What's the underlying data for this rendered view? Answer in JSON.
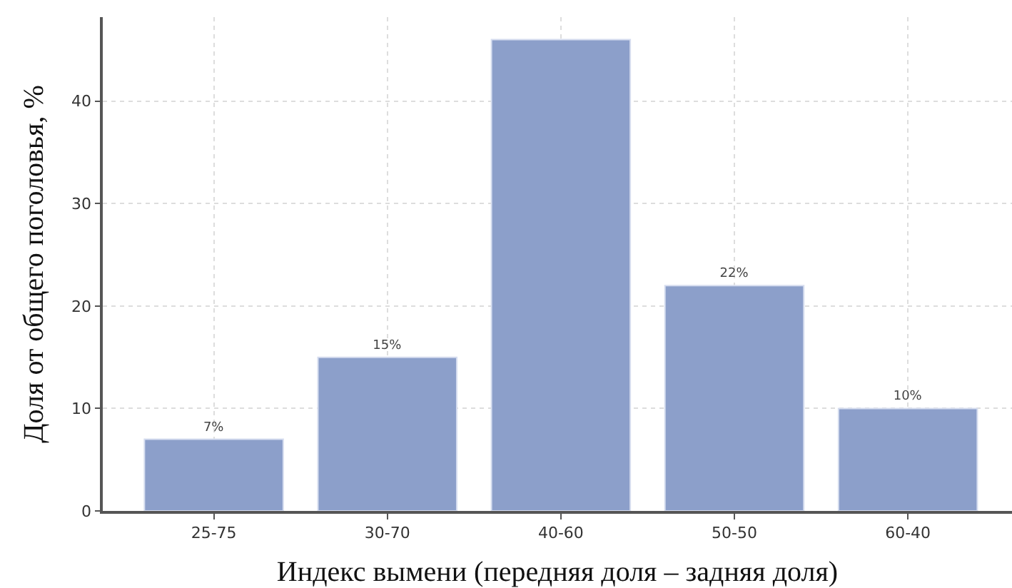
{
  "chart_data": {
    "type": "bar",
    "xlabel": "Индекс вымени (передняя доля – задняя доля)",
    "ylabel": "Доля от общего поголовья, %",
    "categories": [
      "25-75",
      "30-70",
      "40-60",
      "50-50",
      "60-40"
    ],
    "values": [
      7,
      15,
      46,
      22,
      10
    ],
    "value_labels": [
      "7%",
      "15%",
      null,
      "22%",
      "10%"
    ],
    "color": "#8c9fca",
    "ylim": [
      0,
      48.2
    ],
    "yticks": [
      0,
      10,
      20,
      30,
      40
    ],
    "grid": true,
    "legend": false
  }
}
